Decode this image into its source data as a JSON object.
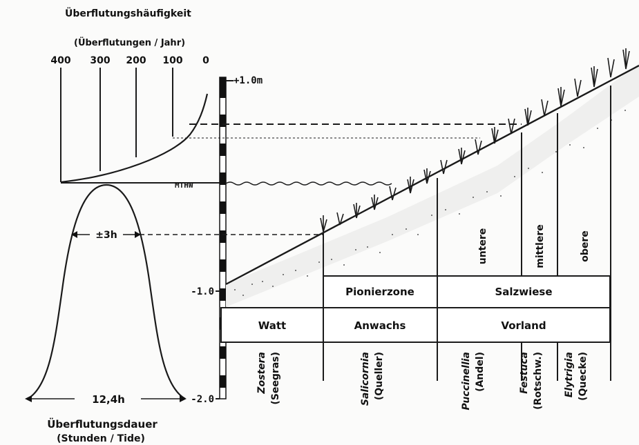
{
  "frequency": {
    "title": "Überflutungshäufigkeit",
    "unit": "(Überflutungen / Jahr)",
    "ticks": [
      "400",
      "300",
      "200",
      "100",
      "0"
    ]
  },
  "scale": {
    "top": "+1.0m",
    "minus1": "-1.0",
    "minus2": "-2.0",
    "mthw": "MTHW"
  },
  "duration": {
    "half": "±3h",
    "full": "12,4h",
    "title": "Überflutungsdauer",
    "unit": "(Stunden / Tide)"
  },
  "zones": {
    "row_top": {
      "pionier": "Pionierzone",
      "salzwiese": "Salzwiese"
    },
    "row_bottom": {
      "watt": "Watt",
      "anwachs": "Anwachs",
      "vorland": "Vorland"
    },
    "sub": [
      "untere",
      "mittlere",
      "obere"
    ]
  },
  "species": [
    {
      "genus": "Zostera",
      "common": "(Seegras)"
    },
    {
      "genus": "Salicornia",
      "common": "(Queller)"
    },
    {
      "genus": "Puccinellia",
      "common": "(Andel)"
    },
    {
      "genus": "Festuca",
      "common": "(Rotschw.)"
    },
    {
      "genus": "Elytrigia",
      "common": "(Quecke)"
    }
  ]
}
